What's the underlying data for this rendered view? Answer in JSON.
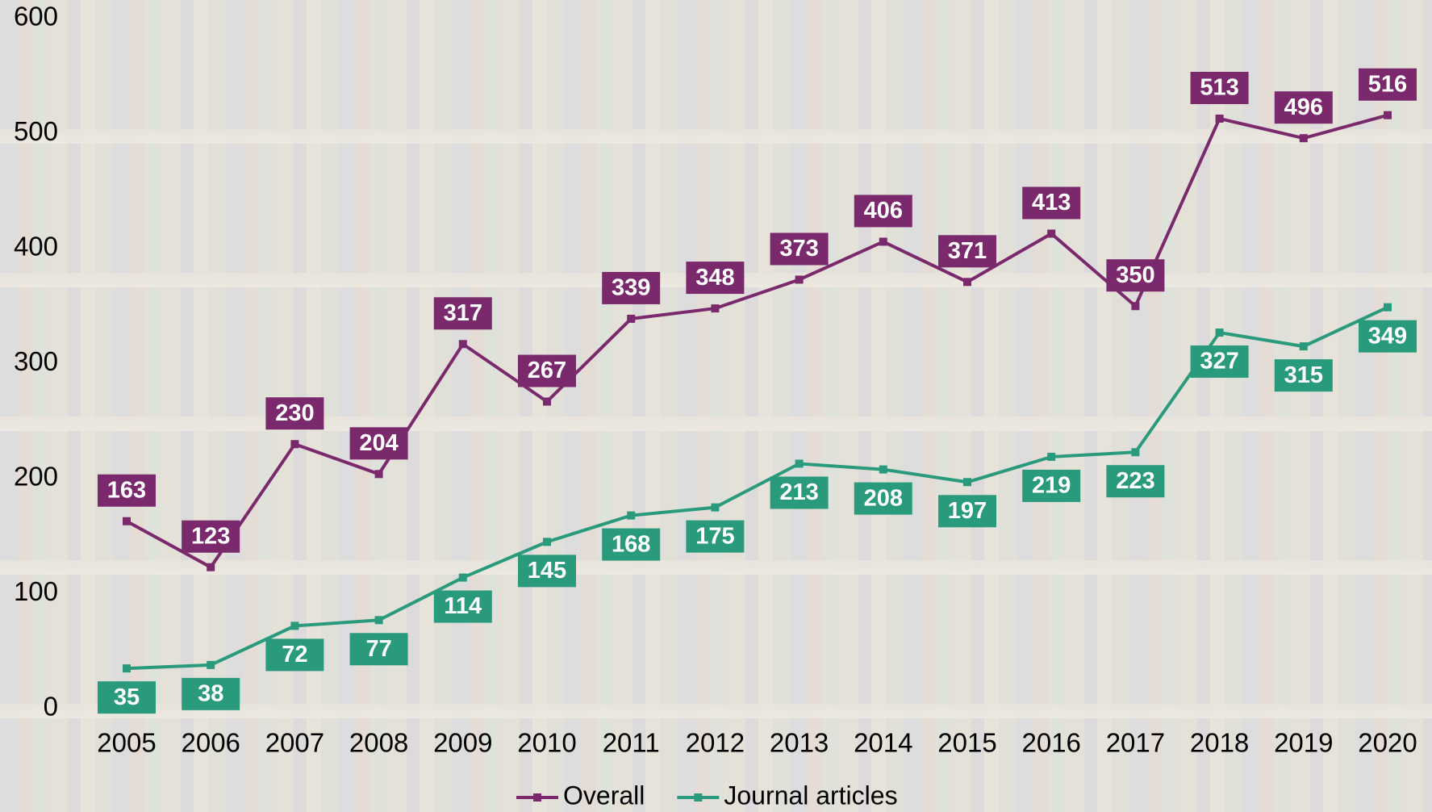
{
  "chart_data": {
    "type": "line",
    "categories": [
      "2005",
      "2006",
      "2007",
      "2008",
      "2009",
      "2010",
      "2011",
      "2012",
      "2013",
      "2014",
      "2015",
      "2016",
      "2017",
      "2018",
      "2019",
      "2020"
    ],
    "series": [
      {
        "name": "Overall",
        "color": "#7a2a6c",
        "values": [
          163,
          123,
          230,
          204,
          317,
          267,
          339,
          348,
          373,
          406,
          371,
          413,
          350,
          513,
          496,
          516
        ]
      },
      {
        "name": "Journal articles",
        "color": "#2a9a7c",
        "values": [
          35,
          38,
          72,
          77,
          114,
          145,
          168,
          175,
          213,
          208,
          197,
          219,
          223,
          327,
          315,
          349
        ]
      }
    ],
    "ylim": [
      0,
      600
    ],
    "yticks": [
      0,
      100,
      200,
      300,
      400,
      500,
      600
    ],
    "grid": false,
    "legend": "bottom"
  }
}
